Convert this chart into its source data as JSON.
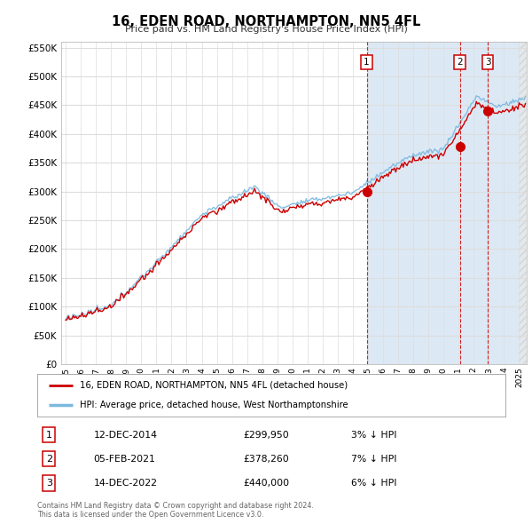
{
  "title": "16, EDEN ROAD, NORTHAMPTON, NN5 4FL",
  "subtitle": "Price paid vs. HM Land Registry's House Price Index (HPI)",
  "legend_line1": "16, EDEN ROAD, NORTHAMPTON, NN5 4FL (detached house)",
  "legend_line2": "HPI: Average price, detached house, West Northamptonshire",
  "footer1": "Contains HM Land Registry data © Crown copyright and database right 2024.",
  "footer2": "This data is licensed under the Open Government Licence v3.0.",
  "sales": [
    {
      "num": "1",
      "date": "12-DEC-2014",
      "price": "£299,950",
      "hpi": "3% ↓ HPI",
      "year": 2014.917
    },
    {
      "num": "2",
      "date": "05-FEB-2021",
      "price": "£378,260",
      "hpi": "7% ↓ HPI",
      "year": 2021.083
    },
    {
      "num": "3",
      "date": "14-DEC-2022",
      "price": "£440,000",
      "hpi": "6% ↓ HPI",
      "year": 2022.917
    }
  ],
  "sale_prices": [
    299950,
    378260,
    440000
  ],
  "hpi_color": "#7ab8e0",
  "price_paid_color": "#cc0000",
  "highlight_bg": "#dce9f5",
  "white_bg": "#ffffff",
  "grid_color": "#dddddd",
  "ylim": [
    0,
    560000
  ],
  "xlim_start": 1994.7,
  "xlim_end": 2025.5,
  "yticks": [
    0,
    50000,
    100000,
    150000,
    200000,
    250000,
    300000,
    350000,
    400000,
    450000,
    500000,
    550000
  ],
  "xticks_start": 1995,
  "xticks_end": 2025
}
